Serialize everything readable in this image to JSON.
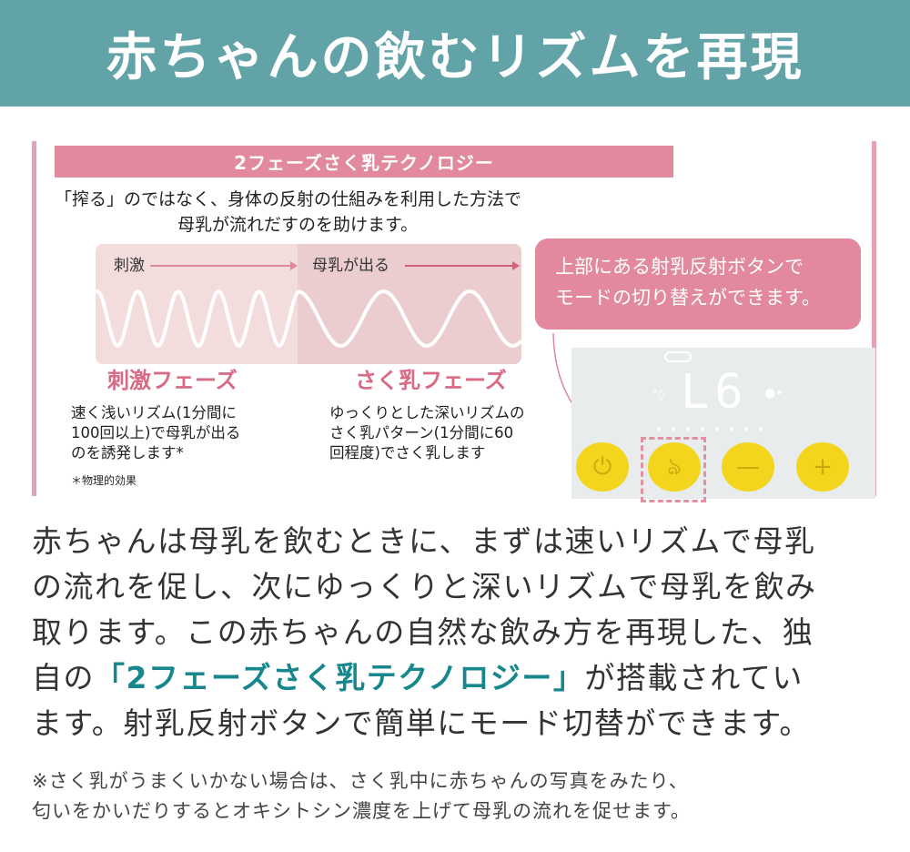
{
  "header": {
    "title": "赤ちゃんの飲むリズムを再現"
  },
  "panel": {
    "title": "2フェーズさく乳テクノロジー",
    "intro": [
      "「搾る」のではなく、身体の反射の仕組みを利用した方法で",
      "母乳が流れだすのを助けます。"
    ],
    "wave": {
      "left_label": "刺激",
      "right_label": "母乳が出る"
    },
    "phases": [
      {
        "name": "刺激フェーズ",
        "desc": [
          "速く浅いリズム(1分間に",
          "100回以上)で母乳が出る",
          "のを誘発します*"
        ],
        "footnote": "＊物理的効果"
      },
      {
        "name": "さく乳フェーズ",
        "desc": [
          "ゆっくりとした深いリズムの",
          "さく乳パターン(1分間に60",
          "回程度)でさく乳します"
        ]
      }
    ],
    "callout": [
      "上部にある射乳反射ボタンで",
      "モードの切り替えができます。"
    ],
    "device": {
      "display": "L6",
      "buttons": [
        "power-icon",
        "letdown-icon",
        "minus-icon",
        "plus-icon"
      ]
    }
  },
  "body": {
    "lines": [
      "赤ちゃんは母乳を飲むときに、まずは速いリズムで母乳",
      "の流れを促し、次にゆっくりと深いリズムで母乳を飲み",
      "取ります。この赤ちゃんの自然な飲み方を再現した、独"
    ],
    "line4_pre": "自の",
    "line4_highlight": "「2フェーズさく乳テクノロジー」",
    "line4_post": "が搭載されてい",
    "line5": "ます。射乳反射ボタンで簡単にモード切替ができます。"
  },
  "note": [
    "※さく乳がうまくいかない場合は、さく乳中に赤ちゃんの写真をみたり、",
    "匂いをかいだりするとオキシトシン濃度を上げて母乳の流れを促せます。"
  ],
  "colors": {
    "header": "#62a3a8",
    "pink": "#e2899d",
    "highlight": "#16878c",
    "button": "#f3d51e"
  }
}
